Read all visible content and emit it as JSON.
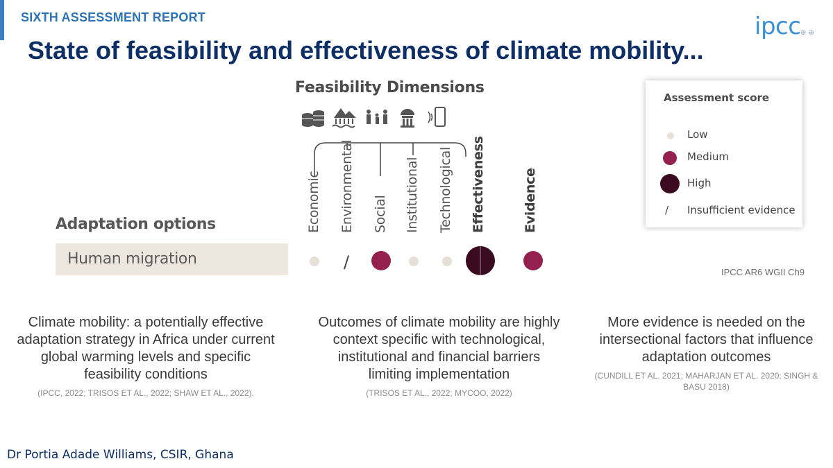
{
  "header": {
    "report_label": "SIXTH ASSESSMENT REPORT",
    "logo_text": "ipcc",
    "title": "State of feasibility and effectiveness of climate mobility..."
  },
  "figure": {
    "heading": "Feasibility Dimensions",
    "icons": [
      "coins-icon",
      "environment-icon",
      "people-icon",
      "institution-icon",
      "phone-icon"
    ],
    "columns": [
      "Economic",
      "Environmental",
      "Social",
      "Institutional",
      "Technological",
      "Effectiveness",
      "Evidence"
    ],
    "row_heading": "Adaptation options",
    "row_label": "Human migration",
    "scores": [
      "Low",
      "Insufficient evidence",
      "Medium",
      "Low",
      "Low",
      "High",
      "Medium"
    ]
  },
  "legend": {
    "title": "Assessment score",
    "items": [
      {
        "label": "Low",
        "color": "#e6e0d6"
      },
      {
        "label": "Medium",
        "color": "#94204f"
      },
      {
        "label": "High",
        "color": "#3a0b20"
      },
      {
        "label": "Insufficient evidence",
        "symbol": "/"
      }
    ]
  },
  "source": "IPCC AR6 WGII Ch9",
  "columns": [
    {
      "text": "Climate mobility: a potentially effective adaptation strategy in Africa under current global warming levels and specific feasibility conditions",
      "citation": "(IPCC, 2022; TRISOS ET AL., 2022; SHAW ET AL., 2022)."
    },
    {
      "text": "Outcomes of climate mobility are highly context specific with technological, institutional and financial barriers limiting implementation",
      "citation": "(TRISOS ET AL., 2022; MYCOO, 2022)"
    },
    {
      "text": "More evidence is needed on the intersectional factors that influence adaptation outcomes",
      "citation": "(CUNDILL ET AL. 2021; MAHARJAN ET AL. 2020; SINGH & BASU 2018)"
    }
  ],
  "author": "Dr Portia Adade Williams, CSIR, Ghana"
}
